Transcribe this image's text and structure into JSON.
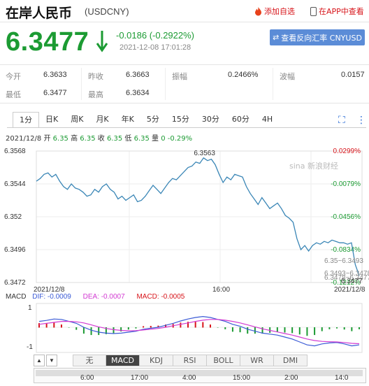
{
  "header": {
    "title": "在岸人民币",
    "code": "(USDCNY)",
    "add_watch": "添加自选",
    "in_app": "在APP中查看"
  },
  "quote": {
    "price": "6.3477",
    "change": "-0.0186 (-0.2922%)",
    "timestamp": "2021-12-08 17:01:28",
    "reverse_button": "查看反向汇率 CNYUSD"
  },
  "stats": [
    {
      "label": "今开",
      "value": "6.3633"
    },
    {
      "label": "昨收",
      "value": "6.3663"
    },
    {
      "label": "振幅",
      "value": "0.2466%"
    },
    {
      "label": "波幅",
      "value": "0.0157"
    },
    {
      "label": "最低",
      "value": "6.3477"
    },
    {
      "label": "最高",
      "value": "6.3634"
    }
  ],
  "tabs": [
    "1分",
    "日K",
    "周K",
    "月K",
    "年K",
    "5分",
    "15分",
    "30分",
    "60分",
    "4H"
  ],
  "ohlc_line": {
    "date": "2021/12/8",
    "o_label": "开",
    "o": "6.35",
    "h_label": "高",
    "h": "6.35",
    "c_label": "收",
    "c": "6.35",
    "l_label": "低",
    "l": "6.35",
    "v_label": "量",
    "v": "0",
    "pct": "-0.29%"
  },
  "watermark": "sina 新浪财经",
  "chart_data": {
    "type": "line",
    "y_ticks": [
      "6.3568",
      "6.3544",
      "6.352",
      "6.3496",
      "6.3472"
    ],
    "y_range": [
      6.3472,
      6.3568
    ],
    "right_ticks": [
      "0.0299%",
      "-0.0079%",
      "-0.0456%",
      "-0.0834%",
      "-0.1212%"
    ],
    "x_labels": [
      "2021/12/8",
      "16:00",
      "2021/12/8"
    ],
    "peak_label": "6.3563",
    "low_label": "6.3477",
    "overlay_labels": [
      "6.35~6.3493",
      "6.3493~6.3478",
      "6.3478~6.3477"
    ],
    "prices": [
      6.3546,
      6.3548,
      6.3551,
      6.3552,
      6.3549,
      6.3551,
      6.3546,
      6.3542,
      6.354,
      6.3544,
      6.3541,
      6.354,
      6.3538,
      6.3535,
      6.3536,
      6.354,
      6.3538,
      6.3542,
      6.3544,
      6.354,
      6.3538,
      6.3533,
      6.3535,
      6.3532,
      6.3534,
      6.3536,
      6.3531,
      6.3532,
      6.3535,
      6.3539,
      6.3543,
      6.354,
      6.3537,
      6.3541,
      6.3545,
      6.3548,
      6.3547,
      6.355,
      6.3553,
      6.3556,
      6.3557,
      6.356,
      6.3559,
      6.3563,
      6.3561,
      6.3562,
      6.3558,
      6.3551,
      6.3545,
      6.3549,
      6.3547,
      6.3551,
      6.355,
      6.3549,
      6.3542,
      6.3537,
      6.3533,
      6.3529,
      6.3534,
      6.353,
      6.3526,
      6.3528,
      6.353,
      6.3526,
      6.3521,
      6.3519,
      6.3516,
      6.3504,
      6.3496,
      6.3499,
      6.3495,
      6.3499,
      6.3501,
      6.35,
      6.3502,
      6.3501,
      6.3503,
      6.3502,
      6.3501,
      6.3501,
      6.35,
      6.3501,
      6.3485,
      6.3477
    ],
    "macd": {
      "label": "MACD",
      "dif_label": "DIF: -0.0009",
      "dea_label": "DEA: -0.0007",
      "macd_label": "MACD: -0.0005",
      "y_ticks": [
        "1",
        "-1"
      ],
      "dif": [
        0.3,
        0.35,
        0.42,
        0.4,
        0.3,
        0.2,
        0.0,
        -0.15,
        -0.25,
        -0.3,
        -0.32,
        -0.3,
        -0.25,
        -0.2,
        -0.1,
        -0.05,
        0.0,
        0.1,
        0.2,
        0.32,
        0.42,
        0.5,
        0.55,
        0.5,
        0.4,
        0.3,
        0.15,
        0.05,
        -0.1,
        -0.2,
        -0.3,
        -0.35,
        -0.4,
        -0.5,
        -0.6,
        -0.75,
        -0.9,
        -0.95,
        -0.85,
        -0.8,
        -0.78,
        -0.85,
        -0.95,
        -0.9
      ],
      "dea": [
        0.15,
        0.2,
        0.25,
        0.3,
        0.3,
        0.28,
        0.22,
        0.12,
        0.02,
        -0.06,
        -0.12,
        -0.16,
        -0.18,
        -0.17,
        -0.14,
        -0.1,
        -0.06,
        0.0,
        0.08,
        0.15,
        0.22,
        0.3,
        0.36,
        0.4,
        0.4,
        0.36,
        0.3,
        0.22,
        0.12,
        0.02,
        -0.08,
        -0.16,
        -0.24,
        -0.32,
        -0.4,
        -0.5,
        -0.6,
        -0.68,
        -0.72,
        -0.74,
        -0.75,
        -0.78,
        -0.82,
        -0.84
      ]
    },
    "timeline": [
      "6:00",
      "17:00",
      "4:00",
      "15:00",
      "2:00",
      "14:0"
    ]
  },
  "indicators": [
    "无",
    "MACD",
    "KDJ",
    "RSI",
    "BOLL",
    "WR",
    "DMI"
  ],
  "colors": {
    "up": "#d7141a",
    "down": "#1c9b33",
    "line": "#3a86b6",
    "dif": "#3b5bd6",
    "dea": "#d23ad2",
    "macd": "#d7141a"
  }
}
